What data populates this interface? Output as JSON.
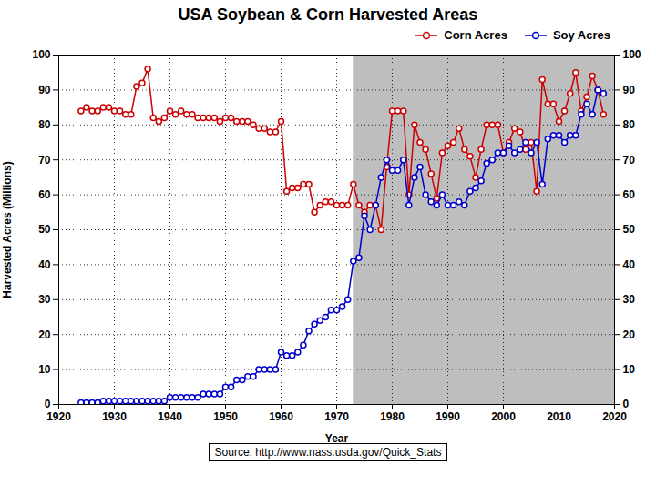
{
  "chart_data": {
    "type": "line",
    "title": "USA  Soybean & Corn Harvested Areas",
    "xlabel": "Year",
    "ylabel": "Harvested Acres (Millions)",
    "caption": "Source: http://www.nass.usda.gov/Quick_Stats",
    "x": [
      1924,
      1925,
      1926,
      1927,
      1928,
      1929,
      1930,
      1931,
      1932,
      1933,
      1934,
      1935,
      1936,
      1937,
      1938,
      1939,
      1940,
      1941,
      1942,
      1943,
      1944,
      1945,
      1946,
      1947,
      1948,
      1949,
      1950,
      1951,
      1952,
      1953,
      1954,
      1955,
      1956,
      1957,
      1958,
      1959,
      1960,
      1961,
      1962,
      1963,
      1964,
      1965,
      1966,
      1967,
      1968,
      1969,
      1970,
      1971,
      1972,
      1973,
      1974,
      1975,
      1976,
      1977,
      1978,
      1979,
      1980,
      1981,
      1982,
      1983,
      1984,
      1985,
      1986,
      1987,
      1988,
      1989,
      1990,
      1991,
      1992,
      1993,
      1994,
      1995,
      1996,
      1997,
      1998,
      1999,
      2000,
      2001,
      2002,
      2003,
      2004,
      2005,
      2006,
      2007,
      2008,
      2009,
      2010,
      2011,
      2012,
      2013,
      2014,
      2015,
      2016,
      2017,
      2018
    ],
    "series": [
      {
        "name": "Corn Acres",
        "color": "#CC0000",
        "marker": "o",
        "line_style": "solid",
        "values": [
          84,
          85,
          84,
          84,
          85,
          85,
          84,
          84,
          83,
          83,
          91,
          92,
          96,
          82,
          81,
          82,
          84,
          83,
          84,
          83,
          83,
          82,
          82,
          82,
          82,
          81,
          82,
          82,
          81,
          81,
          81,
          80,
          79,
          79,
          78,
          78,
          81,
          61,
          62,
          62,
          63,
          63,
          55,
          57,
          58,
          58,
          57,
          57,
          57,
          63,
          57,
          55,
          57,
          57,
          50,
          68,
          84,
          84,
          84,
          60,
          80,
          75,
          73,
          66,
          59,
          72,
          74,
          75,
          79,
          73,
          71,
          65,
          73,
          80,
          80,
          80,
          72,
          75,
          79,
          78,
          73,
          75,
          61,
          93,
          86,
          86,
          81,
          84,
          89,
          95,
          84,
          88,
          94,
          90,
          83
        ]
      },
      {
        "name": "Soy Acres",
        "color": "#0000CC",
        "marker": "o",
        "line_style": "solid",
        "values": [
          0.5,
          0.5,
          0.5,
          0.5,
          1,
          1,
          1,
          1,
          1,
          1,
          1,
          1,
          1,
          1,
          1,
          1,
          2,
          2,
          2,
          2,
          2,
          2,
          3,
          3,
          3,
          3,
          5,
          5,
          7,
          7,
          8,
          8,
          10,
          10,
          10,
          10,
          15,
          14,
          14,
          15,
          17,
          21,
          23,
          24,
          25,
          27,
          27,
          28,
          30,
          41,
          42,
          54,
          50,
          57,
          65,
          70,
          67,
          67,
          70,
          57,
          65,
          68,
          60,
          58,
          57,
          60,
          57,
          57,
          58,
          57,
          61,
          62,
          64,
          69,
          70,
          72,
          72,
          74,
          72,
          73,
          75,
          72,
          75,
          63,
          76,
          77,
          77,
          75,
          77,
          77,
          83,
          86,
          83,
          90,
          89
        ]
      }
    ],
    "shade": {
      "from": 1973,
      "to": 2020,
      "color": "#BEBEBE"
    },
    "xlim": [
      1920,
      2020
    ],
    "xticks": [
      1920,
      1930,
      1940,
      1950,
      1960,
      1970,
      1980,
      1990,
      2000,
      2010,
      2020
    ],
    "ylim": [
      0,
      100
    ],
    "yticks": [
      0,
      10,
      20,
      30,
      40,
      50,
      60,
      70,
      80,
      90,
      100
    ],
    "y2lim": [
      0,
      100
    ],
    "y2ticks": [
      0,
      10,
      20,
      30,
      40,
      50,
      60,
      70,
      80,
      90,
      100
    ],
    "grid": true,
    "legend": "upper right"
  }
}
